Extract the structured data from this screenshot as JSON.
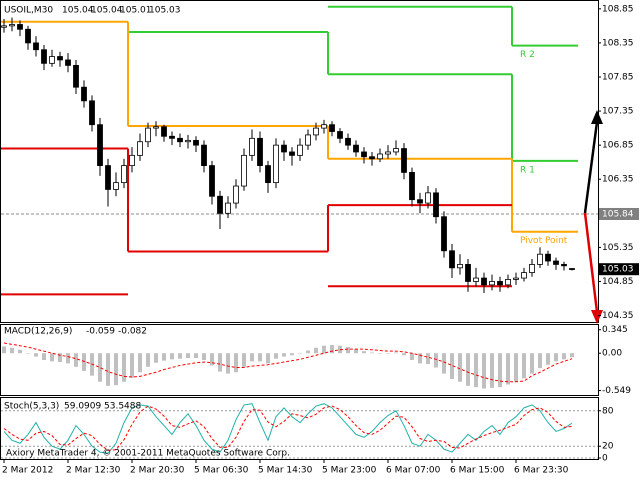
{
  "chart_data": [
    {
      "type": "candlestick",
      "title": "USOIL,M30",
      "categories": [
        "2 Mar 2012",
        null,
        null,
        null,
        null,
        null,
        null,
        null,
        "2 Mar 12:30",
        null,
        null,
        null,
        null,
        null,
        null,
        null,
        "2 Mar 20:30",
        null,
        null,
        null,
        null,
        null,
        null,
        null,
        "5 Mar 06:30",
        null,
        null,
        null,
        null,
        null,
        null,
        null,
        "5 Mar 14:30",
        null,
        null,
        null,
        null,
        null,
        null,
        null,
        "5 Mar 23:00",
        null,
        null,
        null,
        null,
        null,
        null,
        null,
        "6 Mar 07:00",
        null,
        null,
        null,
        null,
        null,
        null,
        null,
        "6 Mar 15:00",
        null,
        null,
        null,
        null,
        null,
        null,
        null,
        "6 Mar 23:30",
        null,
        null,
        null,
        null,
        null,
        null,
        null
      ],
      "open": [
        108.58,
        108.6,
        108.62,
        108.55,
        108.35,
        108.25,
        108.05,
        108.15,
        108.1,
        108.02,
        107.7,
        107.5,
        107.15,
        106.55,
        106.2,
        106.3,
        106.55,
        106.7,
        106.9,
        107.1,
        107.12,
        106.98,
        106.95,
        106.9,
        106.92,
        106.85,
        106.55,
        106.1,
        105.85,
        106.0,
        106.25,
        106.7,
        106.95,
        106.55,
        106.3,
        106.85,
        106.75,
        106.7,
        106.85,
        107.0,
        107.1,
        107.15,
        107.05,
        106.95,
        106.85,
        106.75,
        106.68,
        106.65,
        106.72,
        106.75,
        106.8,
        106.45,
        106.05,
        106.0,
        106.15,
        105.8,
        105.3,
        105.05,
        105.1,
        104.85,
        104.9,
        104.8,
        104.85,
        104.8,
        104.88,
        104.9,
        104.98,
        105.1,
        105.25,
        105.15,
        105.1,
        105.04
      ],
      "high": [
        108.7,
        108.72,
        108.68,
        108.6,
        108.45,
        108.32,
        108.25,
        108.22,
        108.2,
        108.1,
        107.8,
        107.58,
        107.25,
        106.65,
        106.45,
        106.65,
        106.82,
        107.02,
        107.18,
        107.2,
        107.15,
        107.05,
        107.02,
        107.0,
        106.98,
        106.92,
        106.62,
        106.18,
        106.1,
        106.35,
        106.8,
        107.08,
        107.05,
        106.62,
        106.95,
        106.92,
        106.82,
        106.95,
        107.08,
        107.18,
        107.22,
        107.2,
        107.1,
        107.02,
        106.92,
        106.82,
        106.75,
        106.8,
        106.85,
        106.92,
        106.88,
        106.52,
        106.15,
        106.25,
        106.22,
        105.88,
        105.4,
        105.25,
        105.18,
        105.05,
        104.98,
        104.95,
        104.92,
        104.95,
        104.98,
        105.05,
        105.18,
        105.35,
        105.3,
        105.2,
        105.14,
        105.04
      ],
      "low": [
        108.5,
        108.52,
        108.45,
        108.25,
        108.15,
        107.95,
        108.0,
        108.0,
        107.92,
        107.6,
        107.4,
        107.05,
        106.4,
        105.95,
        106.1,
        106.22,
        106.45,
        106.62,
        106.82,
        106.98,
        106.9,
        106.85,
        106.82,
        106.8,
        106.75,
        106.45,
        105.98,
        105.62,
        105.78,
        105.92,
        106.18,
        106.62,
        106.45,
        106.15,
        106.22,
        106.62,
        106.55,
        106.62,
        106.78,
        106.92,
        107.02,
        106.98,
        106.88,
        106.78,
        106.68,
        106.58,
        106.55,
        106.6,
        106.65,
        106.7,
        106.35,
        105.95,
        105.85,
        105.92,
        105.7,
        105.2,
        104.9,
        104.95,
        104.7,
        104.78,
        104.68,
        104.72,
        104.7,
        104.75,
        104.8,
        104.85,
        104.92,
        105.05,
        105.08,
        105.02,
        105.01,
        105.01
      ],
      "close": [
        108.6,
        108.62,
        108.55,
        108.35,
        108.25,
        108.05,
        108.15,
        108.1,
        108.02,
        107.7,
        107.5,
        107.15,
        106.55,
        106.2,
        106.3,
        106.55,
        106.7,
        106.9,
        107.1,
        107.12,
        106.98,
        106.95,
        106.9,
        106.92,
        106.85,
        106.55,
        106.1,
        105.85,
        106.0,
        106.25,
        106.7,
        106.95,
        106.55,
        106.3,
        106.85,
        106.75,
        106.7,
        106.85,
        107.0,
        107.1,
        107.15,
        107.05,
        106.95,
        106.85,
        106.75,
        106.68,
        106.65,
        106.72,
        106.75,
        106.8,
        106.45,
        106.05,
        106.0,
        106.15,
        105.8,
        105.3,
        105.05,
        105.1,
        104.85,
        104.9,
        104.8,
        104.85,
        104.8,
        104.88,
        104.9,
        104.98,
        105.1,
        105.25,
        105.15,
        105.1,
        105.08,
        105.03
      ],
      "up_color": "#ffffff",
      "down_color": "#000000",
      "ylim": [
        104.27,
        108.95
      ],
      "yticks": [
        108.85,
        108.35,
        107.85,
        107.35,
        106.85,
        106.35,
        105.35,
        104.85,
        104.35
      ],
      "marker_line": 105.84,
      "levels": {
        "starts": [
          0,
          16,
          41,
          64
        ],
        "series": [
          {
            "name": "R 2",
            "color": "#32cd32",
            "values": [
              null,
              null,
              108.88,
              108.31
            ]
          },
          {
            "name": "R 1",
            "color": "#32cd32",
            "values": [
              null,
              108.51,
              107.89,
              106.62
            ]
          },
          {
            "name": "Pivot Point",
            "color": "#ffa500",
            "values": [
              108.66,
              107.13,
              106.65,
              105.58
            ]
          },
          {
            "color": "#e00000",
            "values": [
              106.8,
              105.29,
              105.97,
              null
            ]
          },
          {
            "color": "#e00000",
            "values": [
              104.66,
              null,
              104.78,
              null
            ]
          }
        ]
      }
    },
    {
      "type": "macd",
      "title": "MACD(12,26,9)",
      "series": [
        {
          "type": "histogram",
          "color": "#c0c0c0",
          "values": [
            0.1,
            0.08,
            0.05,
            0.0,
            -0.05,
            -0.1,
            -0.12,
            -0.13,
            -0.15,
            -0.2,
            -0.26,
            -0.33,
            -0.42,
            -0.48,
            -0.47,
            -0.42,
            -0.36,
            -0.28,
            -0.2,
            -0.14,
            -0.11,
            -0.09,
            -0.08,
            -0.07,
            -0.07,
            -0.1,
            -0.18,
            -0.27,
            -0.3,
            -0.28,
            -0.2,
            -0.12,
            -0.12,
            -0.15,
            -0.08,
            -0.05,
            -0.03,
            0.0,
            0.04,
            0.08,
            0.11,
            0.12,
            0.11,
            0.09,
            0.06,
            0.03,
            0.01,
            0.0,
            0.0,
            0.01,
            -0.03,
            -0.1,
            -0.15,
            -0.16,
            -0.21,
            -0.3,
            -0.38,
            -0.42,
            -0.48,
            -0.5,
            -0.52,
            -0.51,
            -0.5,
            -0.46,
            -0.42,
            -0.37,
            -0.3,
            -0.22,
            -0.17,
            -0.12,
            -0.09,
            -0.059
          ]
        },
        {
          "type": "line",
          "color": "#ff0000",
          "dashed": true,
          "values": [
            0.15,
            0.13,
            0.11,
            0.09,
            0.06,
            0.03,
            0.0,
            -0.03,
            -0.05,
            -0.08,
            -0.12,
            -0.16,
            -0.21,
            -0.27,
            -0.31,
            -0.34,
            -0.35,
            -0.34,
            -0.31,
            -0.28,
            -0.24,
            -0.21,
            -0.18,
            -0.16,
            -0.14,
            -0.13,
            -0.14,
            -0.16,
            -0.19,
            -0.21,
            -0.21,
            -0.19,
            -0.18,
            -0.17,
            -0.15,
            -0.13,
            -0.11,
            -0.09,
            -0.06,
            -0.03,
            0.0,
            0.03,
            0.05,
            0.06,
            0.06,
            0.06,
            0.05,
            0.04,
            0.03,
            0.03,
            0.02,
            0.0,
            -0.03,
            -0.06,
            -0.09,
            -0.13,
            -0.18,
            -0.23,
            -0.28,
            -0.32,
            -0.36,
            -0.39,
            -0.41,
            -0.42,
            -0.42,
            -0.41,
            -0.33,
            -0.28,
            -0.22,
            -0.16,
            -0.12,
            -0.082
          ]
        }
      ],
      "ylim": [
        -0.6,
        0.4
      ],
      "yticks": [
        0.345,
        {
          "value": 0,
          "label": "0.00"
        },
        -0.549
      ]
    },
    {
      "type": "stochastic",
      "title": "Stoch(5,3,3)",
      "series": [
        {
          "type": "line",
          "color": "#20b2aa",
          "dashed": false,
          "values": [
            45,
            30,
            25,
            40,
            60,
            35,
            20,
            15,
            30,
            55,
            40,
            20,
            10,
            8,
            25,
            60,
            85,
            90,
            88,
            70,
            55,
            40,
            60,
            75,
            55,
            30,
            15,
            10,
            30,
            65,
            90,
            92,
            60,
            30,
            70,
            85,
            70,
            60,
            75,
            88,
            92,
            85,
            70,
            55,
            40,
            35,
            45,
            60,
            72,
            80,
            55,
            25,
            20,
            40,
            30,
            15,
            10,
            25,
            40,
            30,
            45,
            55,
            40,
            60,
            70,
            85,
            90,
            80,
            60,
            45,
            50,
            59.0909
          ]
        },
        {
          "type": "line",
          "color": "#ff0000",
          "dashed": true,
          "values": [
            50,
            40,
            32,
            30,
            42,
            45,
            38,
            23,
            22,
            33,
            42,
            38,
            23,
            13,
            14,
            31,
            57,
            78,
            88,
            83,
            71,
            55,
            52,
            58,
            63,
            53,
            33,
            18,
            18,
            35,
            62,
            82,
            81,
            61,
            53,
            62,
            75,
            72,
            68,
            74,
            85,
            88,
            82,
            70,
            55,
            43,
            40,
            47,
            59,
            71,
            69,
            53,
            33,
            28,
            30,
            28,
            18,
            17,
            25,
            32,
            38,
            43,
            47,
            52,
            57,
            72,
            82,
            85,
            77,
            62,
            52,
            53.5488
          ]
        }
      ],
      "ylim": [
        0,
        100
      ],
      "yticks": [
        80,
        20,
        0
      ],
      "grid": true
    }
  ],
  "copyright": "Axiory MetaTrader 4, © 2001-2011 MetaQuotes Software Corp."
}
